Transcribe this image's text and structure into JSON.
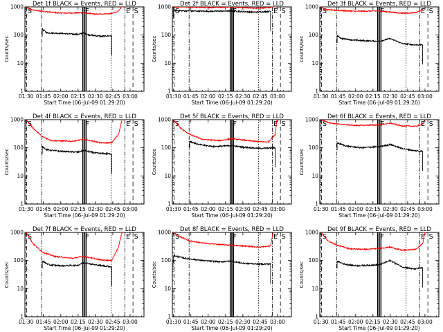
{
  "chart_data": {
    "type": "line",
    "layout": "3x3 grid",
    "title_prefix": "Det",
    "title_suffix": "BLACK = Events, RED = LLD",
    "xlabel": "Start Time (06-Jul-09 01:29:20)",
    "ylabel": "Counts/sec",
    "yscale": "log",
    "ylim": [
      1,
      1000
    ],
    "xlim_min": [
      89,
      192
    ],
    "x_ticks": [
      {
        "min": 90,
        "label": "01:30"
      },
      {
        "min": 105,
        "label": "01:45"
      },
      {
        "min": 120,
        "label": "02:00"
      },
      {
        "min": 135,
        "label": "02:15"
      },
      {
        "min": 150,
        "label": "02:30"
      },
      {
        "min": 165,
        "label": "02:45"
      },
      {
        "min": 180,
        "label": "03:00"
      }
    ],
    "y_ticks": [
      {
        "value": 1,
        "label": "1"
      },
      {
        "value": 10,
        "label": "10"
      },
      {
        "value": 100,
        "label": "100"
      },
      {
        "value": 1000,
        "label": "1000"
      }
    ],
    "series": [
      {
        "name": "Events",
        "color": "#000000"
      },
      {
        "name": "LLD",
        "color": "#ff0000"
      }
    ],
    "markers": [
      {
        "label": "S",
        "min": 90.5,
        "style": "dash"
      },
      {
        "label": "",
        "min": 103.5,
        "style": "dashdot"
      },
      {
        "label": "F",
        "min": 140.5,
        "style": "solid-bar"
      },
      {
        "label": "",
        "min": 163.5,
        "style": "dot"
      },
      {
        "label": "E",
        "min": 175.5,
        "style": "dashdot"
      },
      {
        "label": "S",
        "min": 182.5,
        "style": "dash"
      }
    ],
    "panels": [
      {
        "det": "1f",
        "data_start": 104,
        "data_end": 164,
        "events": [
          [
            104,
            160
          ],
          [
            108,
            120
          ],
          [
            120,
            115
          ],
          [
            135,
            105
          ],
          [
            140,
            120
          ],
          [
            145,
            100
          ],
          [
            155,
            90
          ],
          [
            164,
            95
          ]
        ],
        "lld": [
          [
            90,
            1000
          ],
          [
            94,
            800
          ],
          [
            104,
            700
          ],
          [
            120,
            600
          ],
          [
            140,
            620
          ],
          [
            150,
            550
          ],
          [
            164,
            580
          ],
          [
            170,
            700
          ],
          [
            174,
            1200
          ]
        ]
      },
      {
        "det": "2f",
        "data_start": 90,
        "data_end": 174,
        "events": [
          [
            90,
            750
          ],
          [
            100,
            720
          ],
          [
            120,
            700
          ],
          [
            140,
            720
          ],
          [
            160,
            650
          ],
          [
            174,
            700
          ]
        ],
        "lld": [
          [
            90,
            1000
          ],
          [
            92,
            950
          ],
          [
            96,
            1000
          ],
          [
            120,
            950
          ],
          [
            140,
            1000
          ],
          [
            160,
            900
          ],
          [
            174,
            950
          ],
          [
            178,
            1600
          ]
        ]
      },
      {
        "det": "3f",
        "data_start": 104,
        "data_end": 178,
        "events": [
          [
            104,
            95
          ],
          [
            108,
            75
          ],
          [
            120,
            65
          ],
          [
            140,
            60
          ],
          [
            150,
            75
          ],
          [
            160,
            50
          ],
          [
            170,
            45
          ],
          [
            178,
            45
          ]
        ],
        "lld": [
          [
            90,
            1000
          ],
          [
            94,
            800
          ],
          [
            104,
            750
          ],
          [
            120,
            700
          ],
          [
            140,
            720
          ],
          [
            160,
            600
          ],
          [
            172,
            620
          ],
          [
            178,
            800
          ]
        ]
      },
      {
        "det": "4f",
        "data_start": 104,
        "data_end": 164,
        "events": [
          [
            104,
            110
          ],
          [
            108,
            85
          ],
          [
            120,
            75
          ],
          [
            135,
            70
          ],
          [
            140,
            80
          ],
          [
            150,
            65
          ],
          [
            164,
            60
          ]
        ],
        "lld": [
          [
            90,
            1000
          ],
          [
            96,
            500
          ],
          [
            104,
            250
          ],
          [
            112,
            180
          ],
          [
            130,
            170
          ],
          [
            140,
            200
          ],
          [
            155,
            150
          ],
          [
            164,
            150
          ],
          [
            170,
            300
          ],
          [
            174,
            1500
          ]
        ]
      },
      {
        "det": "5f",
        "data_start": 104,
        "data_end": 178,
        "events": [
          [
            104,
            170
          ],
          [
            112,
            130
          ],
          [
            125,
            110
          ],
          [
            140,
            120
          ],
          [
            150,
            105
          ],
          [
            165,
            95
          ],
          [
            178,
            100
          ]
        ],
        "lld": [
          [
            90,
            1000
          ],
          [
            96,
            500
          ],
          [
            104,
            300
          ],
          [
            115,
            200
          ],
          [
            130,
            180
          ],
          [
            140,
            210
          ],
          [
            160,
            170
          ],
          [
            172,
            160
          ],
          [
            178,
            300
          ],
          [
            180,
            1600
          ]
        ]
      },
      {
        "det": "6f",
        "data_start": 104,
        "data_end": 178,
        "events": [
          [
            104,
            150
          ],
          [
            112,
            115
          ],
          [
            125,
            100
          ],
          [
            140,
            110
          ],
          [
            150,
            130
          ],
          [
            160,
            95
          ],
          [
            170,
            80
          ],
          [
            178,
            75
          ]
        ],
        "lld": [
          [
            90,
            1000
          ],
          [
            96,
            800
          ],
          [
            104,
            700
          ],
          [
            120,
            620
          ],
          [
            140,
            650
          ],
          [
            150,
            750
          ],
          [
            160,
            600
          ],
          [
            172,
            580
          ],
          [
            178,
            700
          ],
          [
            181,
            1200
          ]
        ]
      },
      {
        "det": "7f",
        "data_start": 104,
        "data_end": 164,
        "events": [
          [
            104,
            95
          ],
          [
            110,
            70
          ],
          [
            120,
            65
          ],
          [
            135,
            68
          ],
          [
            140,
            85
          ],
          [
            150,
            70
          ],
          [
            164,
            60
          ]
        ],
        "lld": [
          [
            90,
            1000
          ],
          [
            96,
            400
          ],
          [
            104,
            200
          ],
          [
            115,
            140
          ],
          [
            130,
            120
          ],
          [
            140,
            140
          ],
          [
            155,
            105
          ],
          [
            164,
            100
          ],
          [
            170,
            300
          ],
          [
            174,
            1600
          ]
        ]
      },
      {
        "det": "8f",
        "data_start": 90,
        "data_end": 174,
        "events": [
          [
            90,
            150
          ],
          [
            100,
            120
          ],
          [
            115,
            100
          ],
          [
            130,
            90
          ],
          [
            140,
            95
          ],
          [
            150,
            80
          ],
          [
            165,
            75
          ],
          [
            174,
            75
          ]
        ],
        "lld": [
          [
            90,
            1000
          ],
          [
            96,
            700
          ],
          [
            104,
            500
          ],
          [
            115,
            420
          ],
          [
            130,
            370
          ],
          [
            140,
            350
          ],
          [
            155,
            320
          ],
          [
            165,
            300
          ],
          [
            174,
            330
          ],
          [
            177,
            1600
          ]
        ]
      },
      {
        "det": "9f",
        "data_start": 104,
        "data_end": 178,
        "events": [
          [
            104,
            95
          ],
          [
            110,
            75
          ],
          [
            120,
            65
          ],
          [
            140,
            70
          ],
          [
            150,
            100
          ],
          [
            160,
            60
          ],
          [
            170,
            50
          ],
          [
            178,
            55
          ]
        ],
        "lld": [
          [
            90,
            1000
          ],
          [
            96,
            500
          ],
          [
            104,
            350
          ],
          [
            115,
            260
          ],
          [
            130,
            250
          ],
          [
            140,
            270
          ],
          [
            150,
            300
          ],
          [
            160,
            230
          ],
          [
            172,
            250
          ],
          [
            178,
            400
          ],
          [
            181,
            1500
          ]
        ]
      }
    ]
  }
}
